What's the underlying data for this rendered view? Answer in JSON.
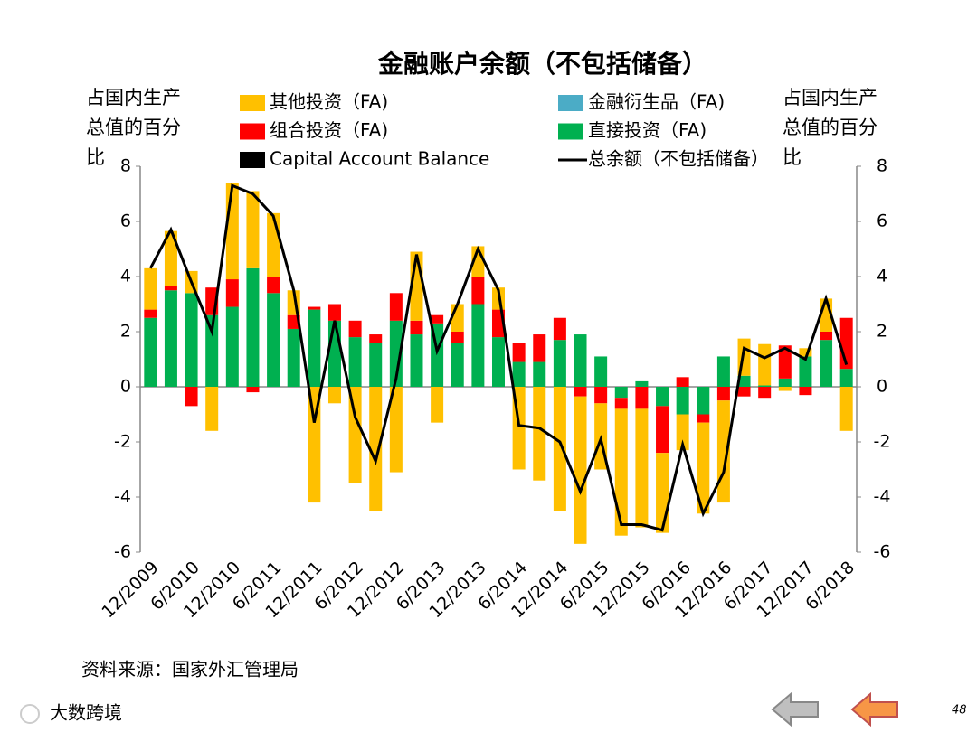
{
  "chart_data": {
    "type": "bar",
    "title": "金融账户余额（不包括储备）",
    "ylabel": "占国内生产总值的百分比",
    "y2label": "占国内生产总值的百分比",
    "categories": [
      "12/2009",
      null,
      "6/2010",
      null,
      "12/2010",
      null,
      "6/2011",
      null,
      "12/2011",
      null,
      "6/2012",
      null,
      "12/2012",
      null,
      "6/2013",
      null,
      "12/2013",
      null,
      "6/2014",
      null,
      "12/2014",
      null,
      "6/2015",
      null,
      "12/2015",
      null,
      "6/2016",
      null,
      "12/2016",
      null,
      "6/2017",
      null,
      "12/2017",
      null,
      "6/2018"
    ],
    "series": [
      {
        "name": "其他投资（FA)",
        "color": "#ffc000",
        "values": [
          1.5,
          2.0,
          0.8,
          -1.6,
          3.5,
          2.8,
          2.3,
          0.9,
          -4.2,
          -0.6,
          -3.5,
          -4.5,
          -3.1,
          2.5,
          -1.3,
          1.0,
          1.1,
          0.8,
          -3.0,
          -3.4,
          -4.5,
          -5.35,
          -2.4,
          -4.6,
          -4.3,
          -2.9,
          -1.3,
          -3.3,
          -3.7,
          1.35,
          1.5,
          -0.15,
          0.3,
          1.2,
          -1.6
        ]
      },
      {
        "name": "金融衍生品（FA)",
        "color": "#4bacc6",
        "values": [
          0,
          0,
          0,
          0,
          0,
          0,
          0,
          0,
          0,
          0,
          0,
          0,
          0,
          0,
          0,
          0,
          0,
          0,
          0,
          0,
          0,
          0,
          0,
          0,
          0,
          0,
          0,
          0,
          0,
          0,
          0,
          0,
          0,
          0,
          0
        ]
      },
      {
        "name": "组合投资（FA)",
        "color": "#ff0000",
        "values": [
          0.3,
          0.15,
          -0.7,
          1.0,
          1.0,
          -0.2,
          0.6,
          0.5,
          0.1,
          0.6,
          0.6,
          0.3,
          1.0,
          0.5,
          0.3,
          0.4,
          1.0,
          1.0,
          0.7,
          1.0,
          0.8,
          -0.35,
          -0.6,
          -0.4,
          -0.8,
          -1.7,
          0.35,
          -0.3,
          -0.5,
          -0.35,
          -0.4,
          1.2,
          -0.3,
          0.3,
          1.85
        ]
      },
      {
        "name": "直接投资（FA)",
        "color": "#00b050",
        "values": [
          2.5,
          3.5,
          3.4,
          2.6,
          2.9,
          4.3,
          3.4,
          2.1,
          2.8,
          2.4,
          1.8,
          1.6,
          2.4,
          1.9,
          2.3,
          1.6,
          3.0,
          1.8,
          0.9,
          0.9,
          1.7,
          1.9,
          1.1,
          -0.4,
          0.2,
          -0.7,
          -1.0,
          -1.0,
          1.1,
          0.4,
          0.05,
          0.3,
          1.1,
          1.7,
          0.65
        ]
      },
      {
        "name": "Capital Account Balance",
        "color": "#000000",
        "values": [
          0,
          0,
          0,
          0,
          0,
          0,
          0,
          0,
          0,
          0,
          0,
          0,
          0,
          0,
          0,
          0,
          0,
          0,
          0,
          0,
          0,
          0,
          0,
          0,
          0,
          0,
          0,
          0,
          0,
          0,
          0,
          0,
          0,
          0,
          0
        ]
      },
      {
        "name": "总余额（不包括储备）",
        "color": "#000000",
        "type": "line",
        "values": [
          4.3,
          5.7,
          3.8,
          2.0,
          7.3,
          7.0,
          6.2,
          3.5,
          -1.3,
          2.4,
          -1.1,
          -2.7,
          0.3,
          4.8,
          1.3,
          3.0,
          5.0,
          3.5,
          -1.4,
          -1.5,
          -2.0,
          -3.8,
          -1.9,
          -5.0,
          -5.0,
          -5.2,
          -2.1,
          -4.6,
          -3.1,
          1.4,
          1.05,
          1.4,
          1.0,
          3.2,
          0.8
        ]
      }
    ],
    "ylim": [
      -6,
      8
    ],
    "yticks": [
      -6,
      -4,
      -2,
      0,
      2,
      4,
      6,
      8
    ],
    "y2lim": [
      -6,
      8
    ],
    "y2ticks": [
      -6,
      -4,
      -2,
      0,
      2,
      4,
      6,
      8
    ]
  },
  "footer": {
    "source": "资料来源：国家外汇管理局",
    "page_number": "48",
    "watermark": "大数跨境"
  }
}
